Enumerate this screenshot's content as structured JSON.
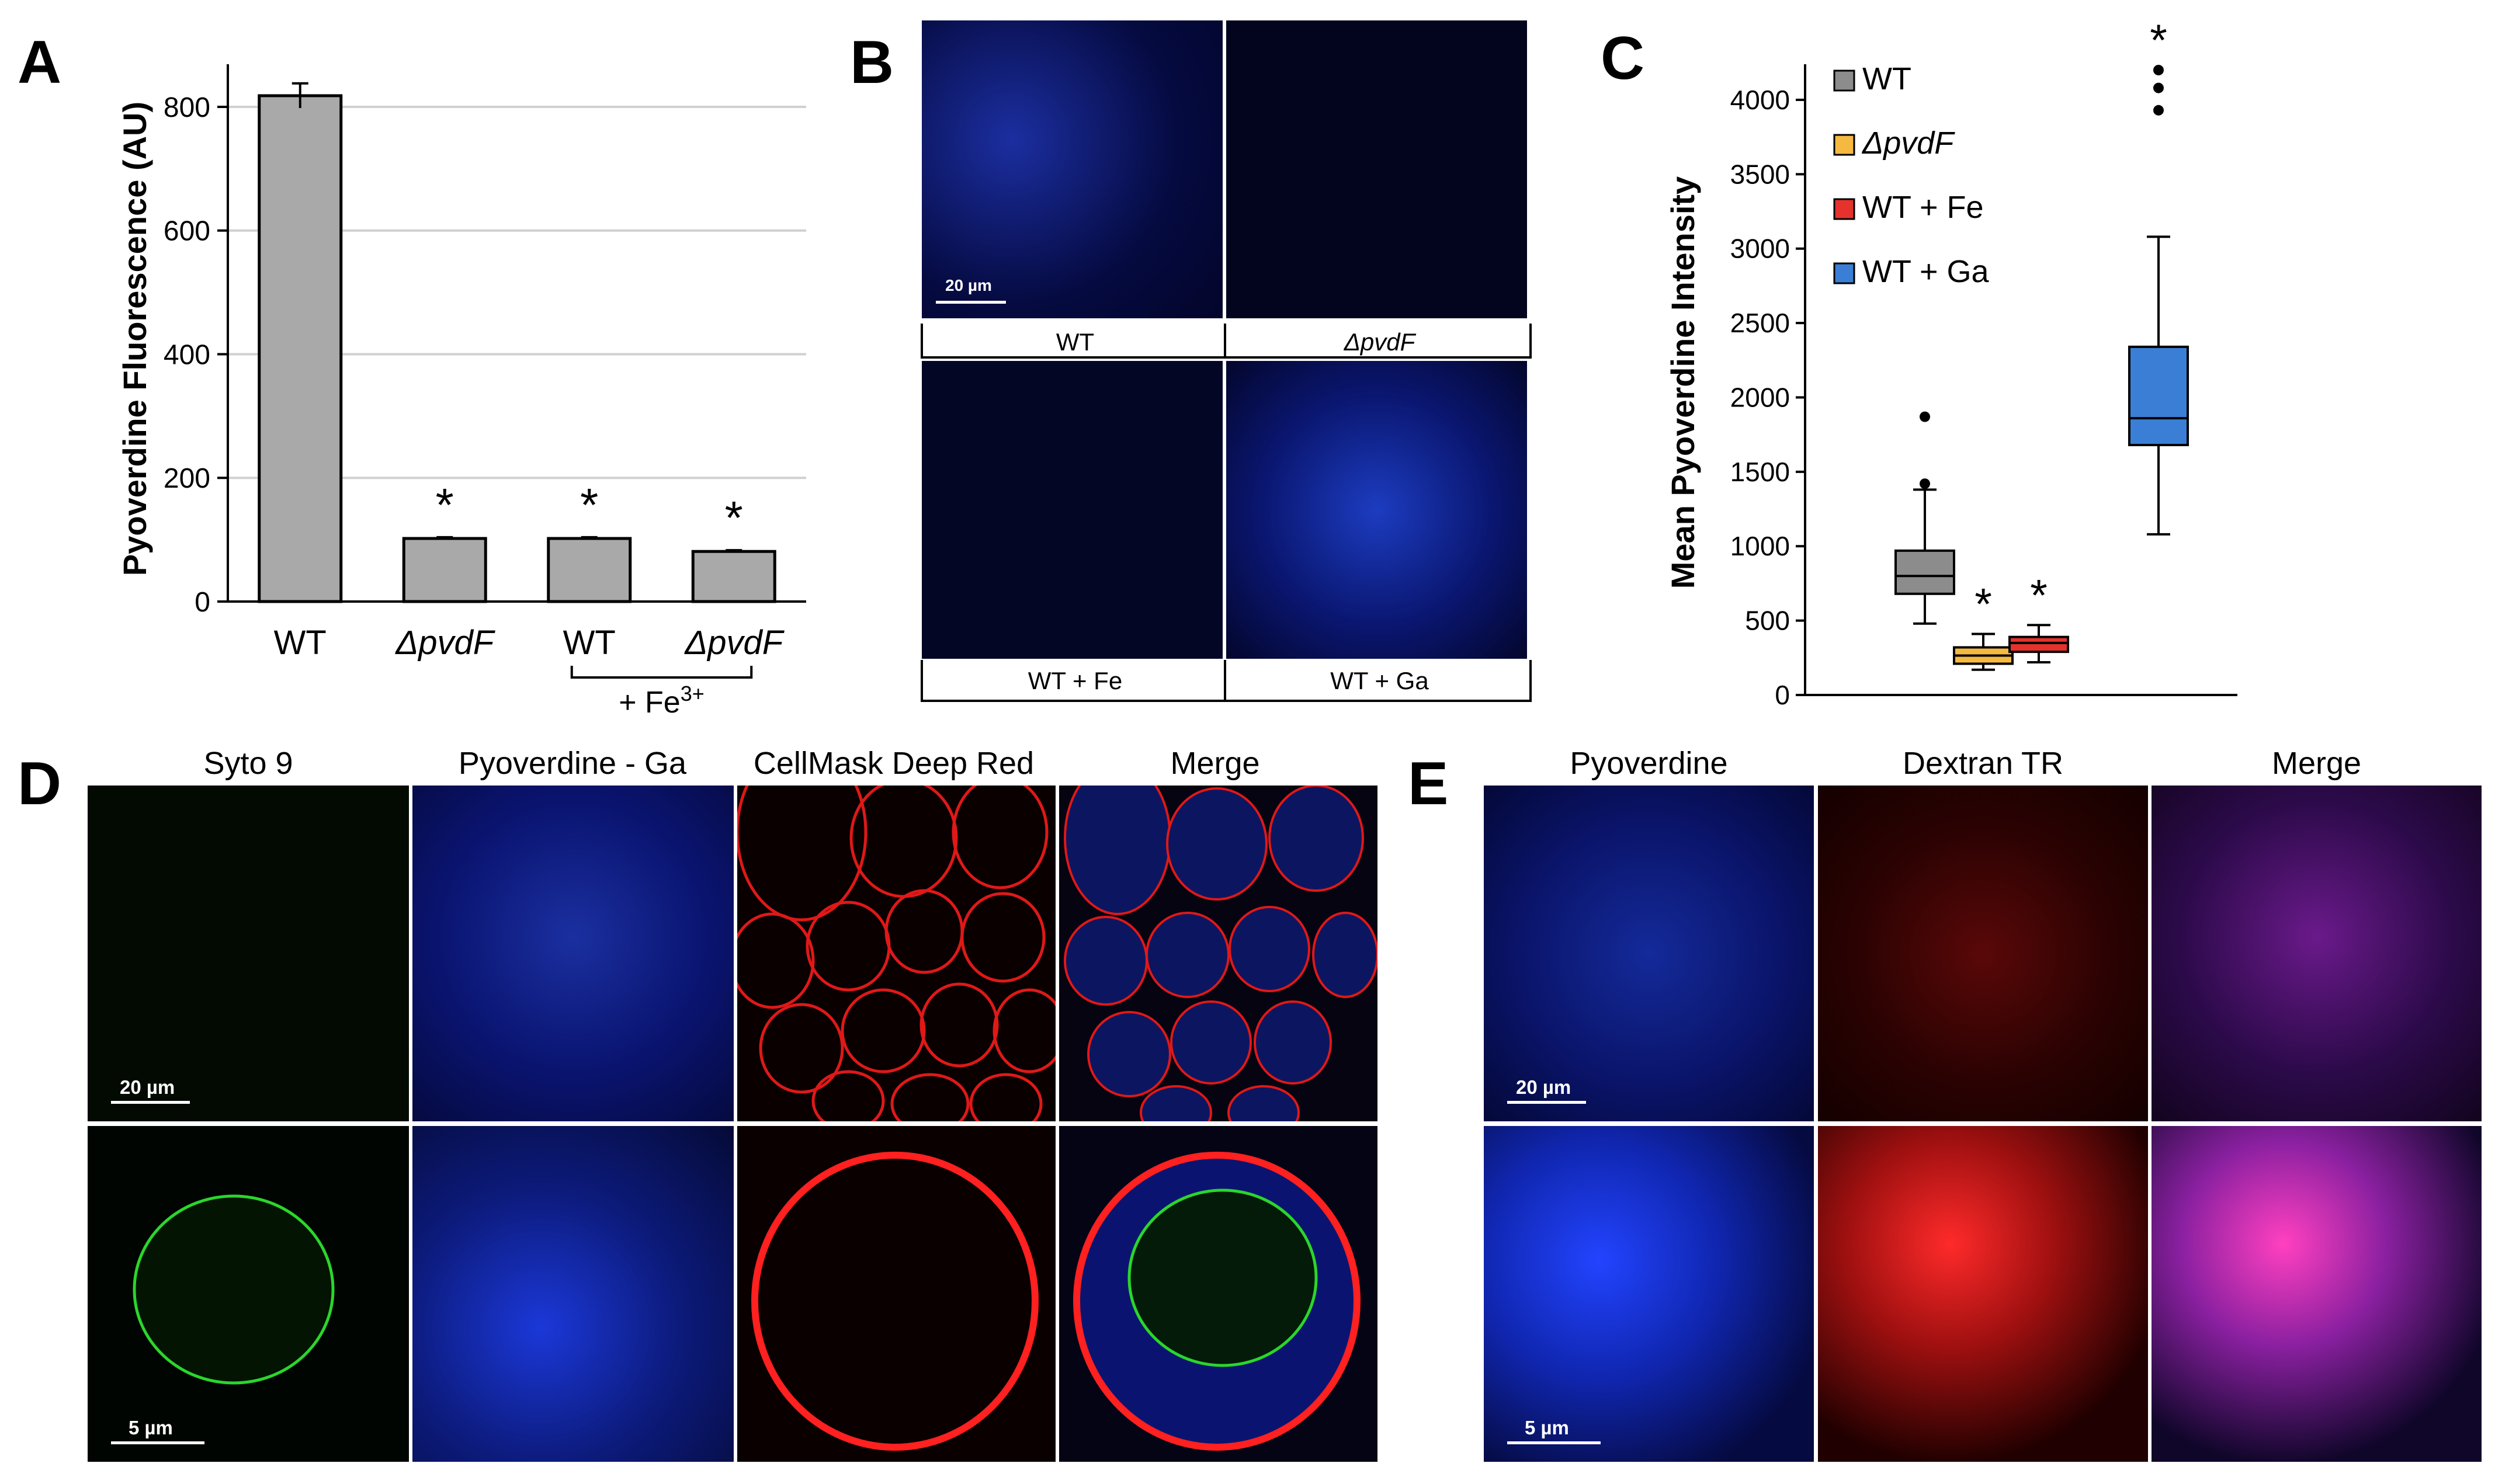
{
  "panels": {
    "A": "A",
    "B": "B",
    "C": "C",
    "D": "D",
    "E": "E"
  },
  "chart_data": [
    {
      "type": "bar",
      "panel": "A",
      "ylabel": "Pyoverdine Fluorescence (AU)",
      "ylim": [
        0,
        850
      ],
      "yticks": [
        0,
        200,
        400,
        600,
        800
      ],
      "grid": true,
      "categories": [
        "WT",
        "ΔpvdF",
        "WT",
        "ΔpvdF"
      ],
      "category_italic": [
        false,
        true,
        false,
        true
      ],
      "values": [
        818,
        102,
        102,
        81
      ],
      "errors": [
        20,
        2,
        2,
        2
      ],
      "significance": [
        "",
        "*",
        "*",
        "*"
      ],
      "group_label": "+ Fe",
      "group_label_sup": "3+",
      "bar_color": "#a9a9a9"
    },
    {
      "type": "box",
      "panel": "C",
      "ylabel": "Mean Pyoverdine Intensity",
      "ylim": [
        0,
        4200
      ],
      "yticks": [
        0,
        500,
        1000,
        1500,
        2000,
        2500,
        3000,
        3500,
        4000
      ],
      "series": [
        {
          "name": "WT",
          "italic": false,
          "color": "#8c8c8c",
          "min": 480,
          "q1": 680,
          "median": 800,
          "q3": 970,
          "max": 1380,
          "outliers": [
            1420,
            1870
          ],
          "significance": ""
        },
        {
          "name": "ΔpvdF",
          "italic": true,
          "color": "#f5b942",
          "min": 170,
          "q1": 210,
          "median": 265,
          "q3": 320,
          "max": 410,
          "outliers": [],
          "significance": "*"
        },
        {
          "name": "WT + Fe",
          "italic": false,
          "color": "#e5322d",
          "min": 220,
          "q1": 290,
          "median": 350,
          "q3": 390,
          "max": 470,
          "outliers": [],
          "significance": "*"
        },
        {
          "name": "WT + Ga",
          "italic": false,
          "color": "#3a7fd5",
          "min": 1080,
          "q1": 1680,
          "median": 1860,
          "q3": 2340,
          "max": 3080,
          "outliers": [
            3930,
            4080,
            4200
          ],
          "significance": "*"
        }
      ]
    }
  ],
  "panelB": {
    "labels": [
      "WT",
      "ΔpvdF",
      "WT + Fe",
      "WT + Ga"
    ],
    "scale": "20 µm"
  },
  "panelD": {
    "titles": [
      "Syto 9",
      "Pyoverdine - Ga",
      "CellMask Deep Red",
      "Merge"
    ],
    "scale_top": "20 µm",
    "scale_bottom": "5 µm"
  },
  "panelE": {
    "titles": [
      "Pyoverdine",
      "Dextran TR",
      "Merge"
    ],
    "scale_top": "20 µm",
    "scale_bottom": "5 µm"
  },
  "colors": {
    "blue_stain": "#2a4dff",
    "green_stain": "#22d922",
    "red_stain": "#ff2020",
    "magenta_stain": "#e040e0"
  }
}
